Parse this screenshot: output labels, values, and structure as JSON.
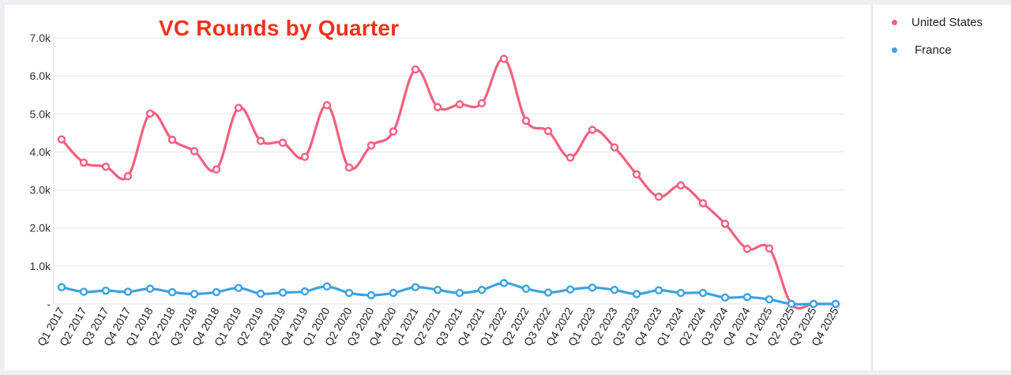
{
  "chart_data": {
    "type": "line",
    "title": "VC Rounds by Quarter",
    "xlabel": "",
    "ylabel": "",
    "ylim": [
      0,
      7000
    ],
    "yticks": [
      "-",
      "1.0k",
      "2.0k",
      "3.0k",
      "4.0k",
      "5.0k",
      "6.0k",
      "7.0k"
    ],
    "grid": true,
    "legend_position": "right",
    "categories": [
      "Q1 2017",
      "Q2 2017",
      "Q3 2017",
      "Q4 2017",
      "Q1 2018",
      "Q2 2018",
      "Q3 2018",
      "Q4 2018",
      "Q1 2019",
      "Q2 2019",
      "Q3 2019",
      "Q4 2019",
      "Q1 2020",
      "Q2 2020",
      "Q3 2020",
      "Q4 2020",
      "Q1 2021",
      "Q2 2021",
      "Q3 2021",
      "Q4 2021",
      "Q1 2022",
      "Q2 2022",
      "Q3 2022",
      "Q4 2022",
      "Q1 2023",
      "Q2 2023",
      "Q3 2023",
      "Q4 2023",
      "Q1 2024",
      "Q2 2024",
      "Q3 2024",
      "Q4 2024",
      "Q1 2025",
      "Q2 2025",
      "Q3 2025",
      "Q4 2025"
    ],
    "series": [
      {
        "name": "United States",
        "color": "#f4607f",
        "values": [
          4330,
          3720,
          3610,
          3360,
          5010,
          4320,
          4020,
          3540,
          5160,
          4290,
          4240,
          3870,
          5230,
          3590,
          4170,
          4540,
          6170,
          5180,
          5250,
          5280,
          6450,
          4820,
          4550,
          3850,
          4580,
          4120,
          3410,
          2820,
          3120,
          2650,
          2110,
          1450,
          1460,
          0,
          0,
          0
        ]
      },
      {
        "name": "France",
        "color": "#3ca2e0",
        "values": [
          440,
          320,
          350,
          320,
          400,
          310,
          260,
          310,
          420,
          270,
          300,
          330,
          460,
          290,
          230,
          290,
          440,
          370,
          290,
          370,
          550,
          400,
          300,
          380,
          430,
          370,
          260,
          360,
          290,
          290,
          170,
          180,
          120,
          0,
          0,
          0
        ]
      }
    ]
  }
}
